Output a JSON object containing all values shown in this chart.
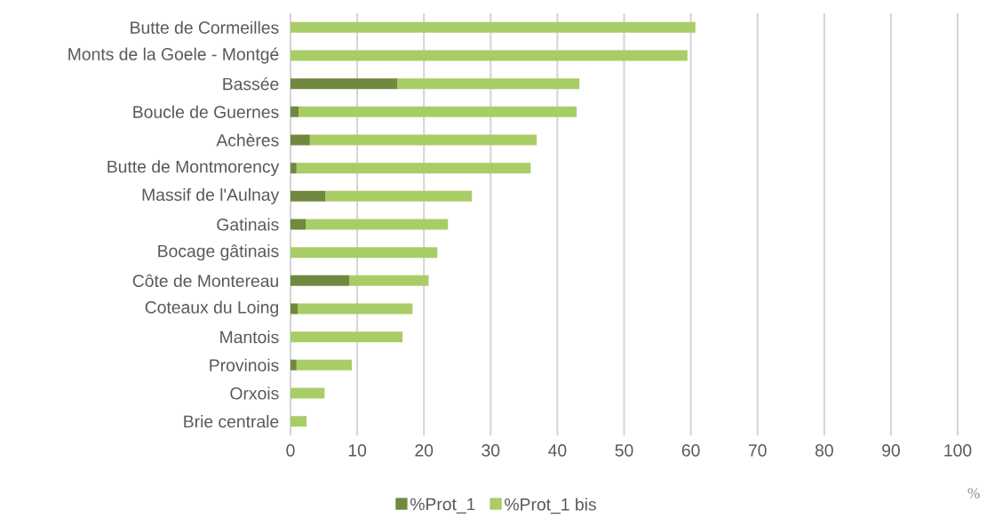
{
  "chart_data": {
    "type": "bar",
    "orientation": "horizontal",
    "stacked": true,
    "categories": [
      "Butte de Cormeilles",
      "Monts de la Goele - Montgé",
      "Bassée",
      "Boucle de Guernes",
      "Achères",
      "Butte de Montmorency",
      "Massif de l'Aulnay",
      "Gatinais",
      "Bocage gâtinais",
      "Côte de Montereau",
      "Coteaux du Loing",
      "Mantois",
      "Provinois",
      "Orxois",
      "Brie centrale"
    ],
    "series": [
      {
        "name": "%Prot_1",
        "color": "#71893f",
        "values": [
          0,
          0,
          16.0,
          1.2,
          2.9,
          0.9,
          5.2,
          2.3,
          0,
          8.8,
          1.1,
          0,
          0.9,
          0,
          0
        ]
      },
      {
        "name": "%Prot_1 bis",
        "color": "#a9cd66",
        "values": [
          60.7,
          59.5,
          27.3,
          41.7,
          34.0,
          35.1,
          22.0,
          21.3,
          22.0,
          11.9,
          17.2,
          16.8,
          8.3,
          5.1,
          2.4
        ]
      }
    ],
    "xlim": [
      0,
      100
    ],
    "xticks": [
      0,
      10,
      20,
      30,
      40,
      50,
      60,
      70,
      80,
      90,
      100
    ],
    "grid": "x",
    "legend": "bottom",
    "annotations": [
      "%"
    ]
  }
}
